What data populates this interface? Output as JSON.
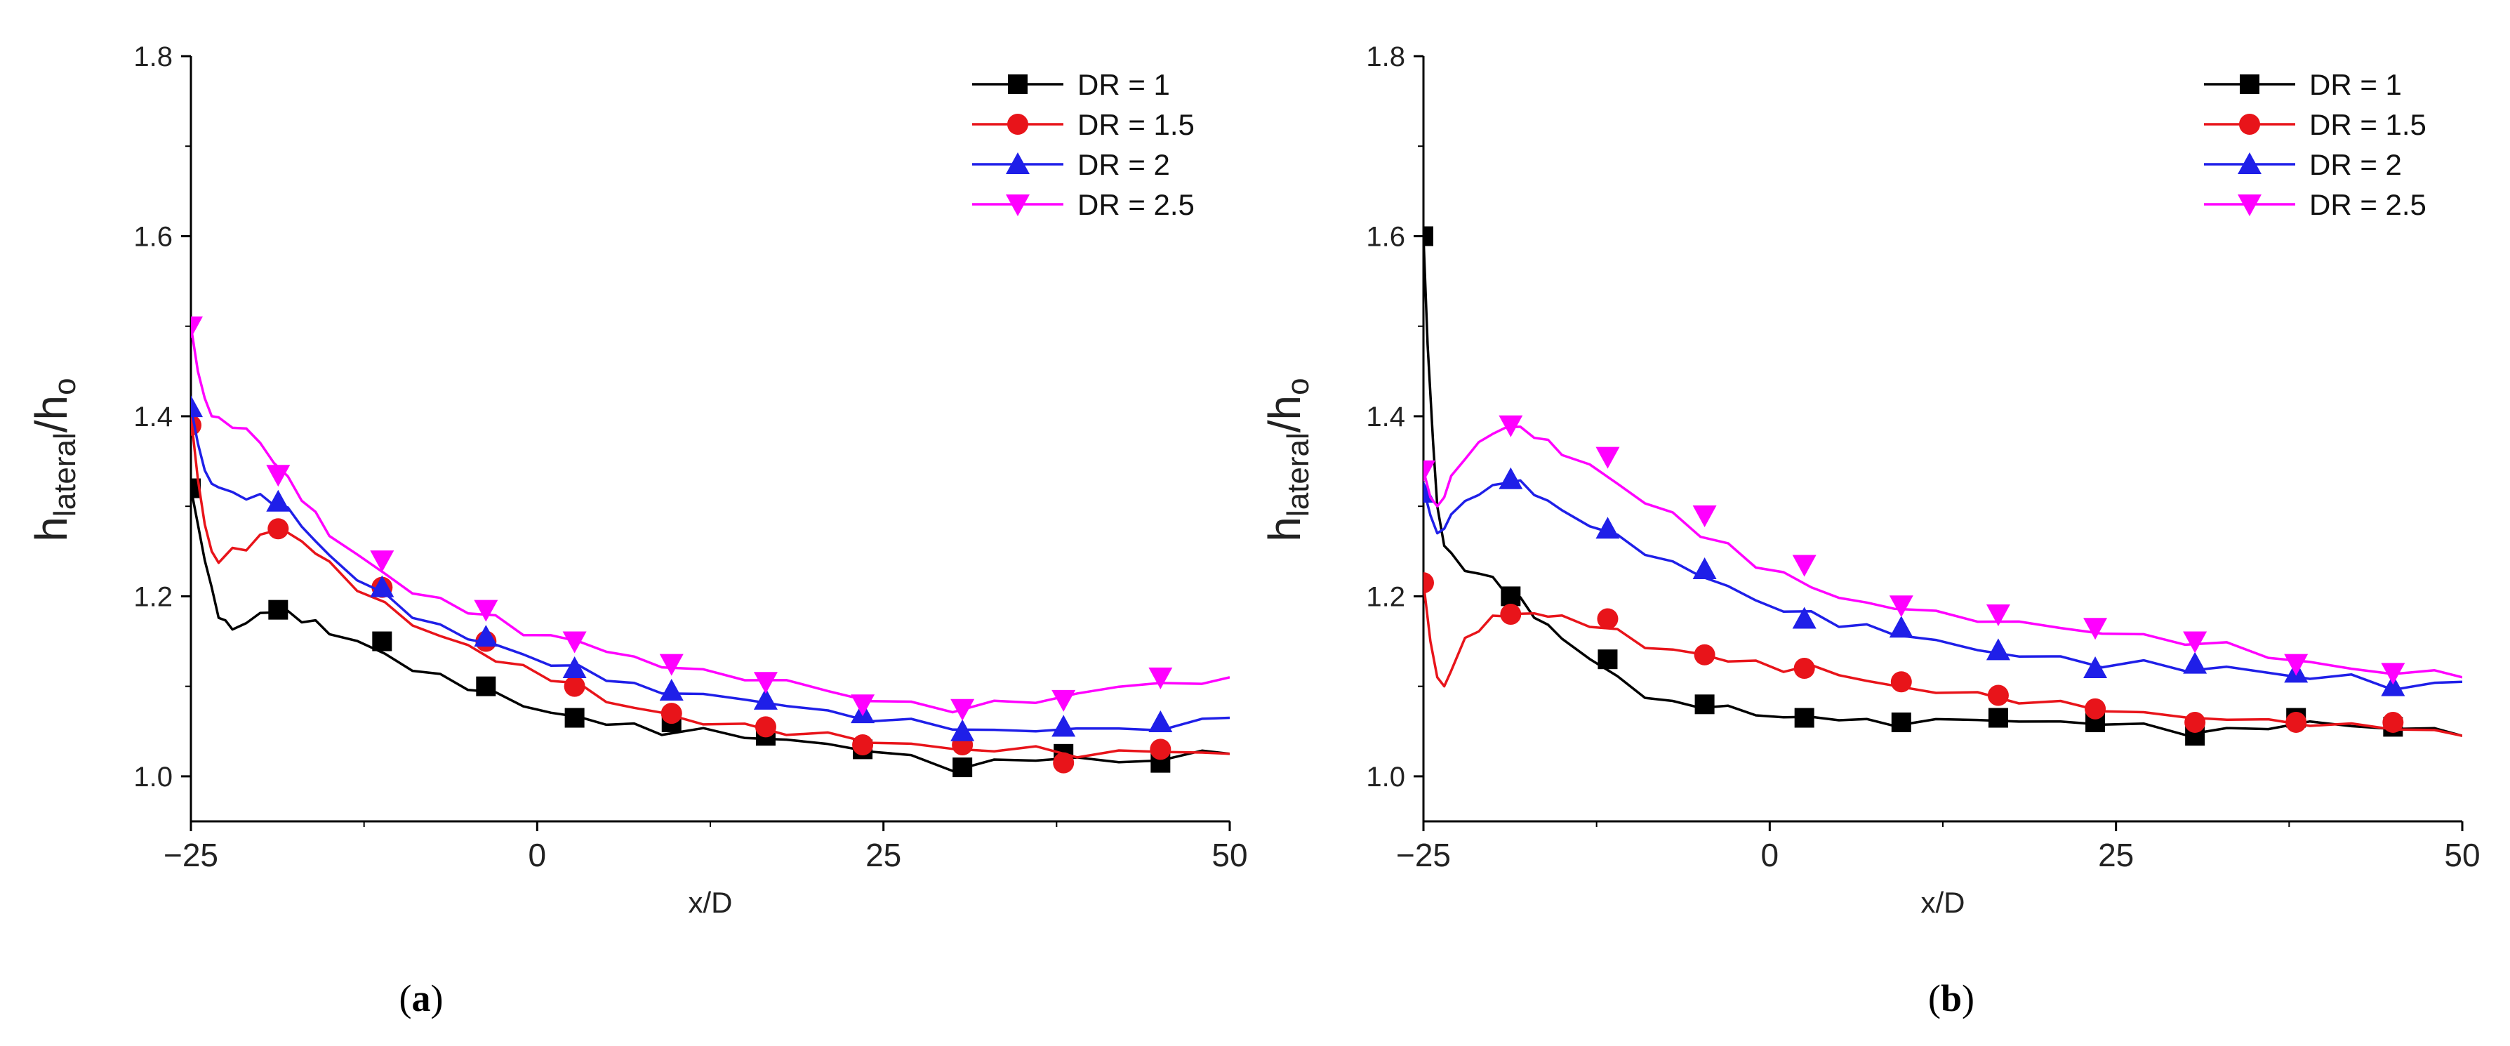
{
  "chart_data": [
    {
      "type": "line",
      "panel_label": "(a)",
      "panel_letter": "a",
      "xlabel": "x/D",
      "ylabel": {
        "base": "h",
        "sub": "lateral",
        "slash": "/h",
        "sub2": "o"
      },
      "xlim": [
        -25,
        50
      ],
      "ylim": [
        0.95,
        1.8
      ],
      "xticks": [
        -25,
        0,
        25,
        50
      ],
      "xtick_labels": [
        "−25",
        "0",
        "25",
        "50"
      ],
      "yticks": [
        1.0,
        1.2,
        1.4,
        1.6,
        1.8
      ],
      "ytick_labels": [
        "1.0",
        "1.2",
        "1.4",
        "1.6",
        "1.8"
      ],
      "legend_position": "top-right",
      "series": [
        {
          "name": "DR = 1",
          "color": "#000000",
          "marker": "square",
          "x": [
            -25,
            -24.5,
            -24,
            -23.5,
            -23,
            -22.5,
            -22,
            -21,
            -20,
            -19,
            -18,
            -17,
            -16,
            -15,
            -13,
            -11,
            -9,
            -7,
            -5,
            -3,
            -1,
            1,
            3,
            5,
            7,
            9,
            12,
            15,
            18,
            21,
            24,
            27,
            30,
            33,
            36,
            39,
            42,
            45,
            48,
            50
          ],
          "y": [
            1.32,
            1.28,
            1.24,
            1.21,
            1.18,
            1.17,
            1.165,
            1.17,
            1.18,
            1.185,
            1.18,
            1.175,
            1.17,
            1.16,
            1.15,
            1.135,
            1.12,
            1.11,
            1.1,
            1.09,
            1.08,
            1.07,
            1.065,
            1.06,
            1.055,
            1.05,
            1.05,
            1.045,
            1.04,
            1.035,
            1.03,
            1.02,
            1.01,
            1.015,
            1.02,
            1.02,
            1.015,
            1.02,
            1.025,
            1.025
          ],
          "mx": [
            -25,
            -18.7,
            -11.2,
            -3.7,
            2.7,
            9.7,
            16.5,
            23.5,
            30.7,
            38,
            45
          ],
          "my": [
            1.32,
            1.185,
            1.15,
            1.1,
            1.065,
            1.06,
            1.045,
            1.03,
            1.01,
            1.025,
            1.015
          ]
        },
        {
          "name": "DR = 1.5",
          "color": "#e8141a",
          "marker": "circle",
          "x": [
            -25,
            -24.5,
            -24,
            -23.5,
            -23,
            -22,
            -21,
            -20,
            -19,
            -18,
            -17,
            -16,
            -15,
            -13,
            -11,
            -9,
            -7,
            -5,
            -3,
            -1,
            1,
            3,
            5,
            7,
            9,
            12,
            15,
            18,
            21,
            24,
            27,
            30,
            33,
            36,
            39,
            42,
            45,
            48,
            50
          ],
          "y": [
            1.4,
            1.33,
            1.28,
            1.25,
            1.24,
            1.25,
            1.255,
            1.265,
            1.275,
            1.27,
            1.26,
            1.25,
            1.235,
            1.21,
            1.19,
            1.17,
            1.155,
            1.145,
            1.13,
            1.12,
            1.11,
            1.1,
            1.085,
            1.075,
            1.07,
            1.06,
            1.055,
            1.05,
            1.045,
            1.04,
            1.035,
            1.03,
            1.03,
            1.03,
            1.025,
            1.025,
            1.03,
            1.025,
            1.025
          ],
          "mx": [
            -25,
            -18.7,
            -11.2,
            -3.7,
            2.7,
            9.7,
            16.5,
            23.5,
            30.7,
            38,
            45
          ],
          "my": [
            1.39,
            1.275,
            1.21,
            1.15,
            1.1,
            1.07,
            1.055,
            1.035,
            1.035,
            1.015,
            1.03
          ]
        },
        {
          "name": "DR = 2",
          "color": "#1f1fe8",
          "marker": "triangle-up",
          "x": [
            -25,
            -24.5,
            -24,
            -23.5,
            -23,
            -22,
            -21,
            -20,
            -19,
            -18,
            -17,
            -16,
            -15,
            -13,
            -11,
            -9,
            -7,
            -5,
            -3,
            -1,
            1,
            3,
            5,
            7,
            9,
            12,
            15,
            18,
            21,
            24,
            27,
            30,
            33,
            36,
            39,
            42,
            45,
            48,
            50
          ],
          "y": [
            1.41,
            1.37,
            1.34,
            1.325,
            1.32,
            1.315,
            1.31,
            1.31,
            1.305,
            1.295,
            1.28,
            1.26,
            1.245,
            1.22,
            1.2,
            1.18,
            1.165,
            1.155,
            1.145,
            1.135,
            1.125,
            1.12,
            1.11,
            1.1,
            1.095,
            1.09,
            1.085,
            1.08,
            1.07,
            1.065,
            1.06,
            1.055,
            1.05,
            1.05,
            1.055,
            1.05,
            1.055,
            1.06,
            1.065
          ],
          "mx": [
            -25,
            -18.7,
            -11.2,
            -3.7,
            2.7,
            9.7,
            16.5,
            23.5,
            30.7,
            38,
            45
          ],
          "my": [
            1.41,
            1.305,
            1.21,
            1.155,
            1.12,
            1.095,
            1.085,
            1.07,
            1.05,
            1.055,
            1.06
          ]
        },
        {
          "name": "DR = 2.5",
          "color": "#ff00ff",
          "marker": "triangle-down",
          "x": [
            -25,
            -24.5,
            -24,
            -23.5,
            -23,
            -22,
            -21,
            -20,
            -19,
            -18,
            -17,
            -16,
            -15,
            -13,
            -11,
            -9,
            -7,
            -5,
            -3,
            -1,
            1,
            3,
            5,
            7,
            9,
            12,
            15,
            18,
            21,
            24,
            27,
            30,
            33,
            36,
            39,
            42,
            45,
            48,
            50
          ],
          "y": [
            1.5,
            1.45,
            1.42,
            1.4,
            1.395,
            1.39,
            1.385,
            1.37,
            1.35,
            1.33,
            1.31,
            1.29,
            1.27,
            1.245,
            1.225,
            1.205,
            1.195,
            1.185,
            1.175,
            1.16,
            1.155,
            1.15,
            1.14,
            1.13,
            1.125,
            1.115,
            1.11,
            1.105,
            1.095,
            1.085,
            1.08,
            1.075,
            1.08,
            1.085,
            1.09,
            1.1,
            1.105,
            1.1,
            1.11
          ],
          "mx": [
            -25,
            -18.7,
            -11.2,
            -3.7,
            2.7,
            9.7,
            16.5,
            23.5,
            30.7,
            38,
            45
          ],
          "my": [
            1.5,
            1.335,
            1.24,
            1.185,
            1.15,
            1.125,
            1.105,
            1.08,
            1.075,
            1.085,
            1.11
          ]
        }
      ]
    },
    {
      "type": "line",
      "panel_label": "(b)",
      "panel_letter": "b",
      "xlabel": "x/D",
      "ylabel": {
        "base": "h",
        "sub": "lateral",
        "slash": "/h",
        "sub2": "o"
      },
      "xlim": [
        -25,
        50
      ],
      "ylim": [
        0.95,
        1.8
      ],
      "xticks": [
        -25,
        0,
        25,
        50
      ],
      "xtick_labels": [
        "−25",
        "0",
        "25",
        "50"
      ],
      "yticks": [
        1.0,
        1.2,
        1.4,
        1.6,
        1.8
      ],
      "ytick_labels": [
        "1.0",
        "1.2",
        "1.4",
        "1.6",
        "1.8"
      ],
      "legend_position": "top-right",
      "series": [
        {
          "name": "DR = 1",
          "color": "#000000",
          "marker": "square",
          "x": [
            -25,
            -24.7,
            -24.3,
            -24,
            -23.5,
            -23,
            -22,
            -21,
            -20,
            -19,
            -18,
            -17,
            -16,
            -15,
            -13,
            -11,
            -9,
            -7,
            -5,
            -3,
            -1,
            1,
            3,
            5,
            7,
            9,
            12,
            15,
            18,
            21,
            24,
            27,
            30,
            33,
            36,
            39,
            42,
            45,
            48,
            50
          ],
          "y": [
            1.6,
            1.48,
            1.37,
            1.3,
            1.26,
            1.245,
            1.23,
            1.225,
            1.22,
            1.205,
            1.195,
            1.18,
            1.165,
            1.155,
            1.13,
            1.11,
            1.09,
            1.08,
            1.08,
            1.075,
            1.07,
            1.065,
            1.065,
            1.065,
            1.06,
            1.06,
            1.06,
            1.065,
            1.06,
            1.06,
            1.06,
            1.055,
            1.05,
            1.05,
            1.055,
            1.06,
            1.055,
            1.055,
            1.05,
            1.045
          ],
          "mx": [
            -25,
            -18.7,
            -11.7,
            -4.7,
            2.5,
            9.5,
            16.5,
            23.5,
            30.7,
            38,
            45
          ],
          "my": [
            1.6,
            1.2,
            1.13,
            1.08,
            1.065,
            1.06,
            1.065,
            1.06,
            1.045,
            1.065,
            1.055
          ]
        },
        {
          "name": "DR = 1.5",
          "color": "#e8141a",
          "marker": "circle",
          "x": [
            -25,
            -24.5,
            -24,
            -23.5,
            -23,
            -22,
            -21,
            -20,
            -19,
            -18,
            -17,
            -16,
            -15,
            -13,
            -11,
            -9,
            -7,
            -5,
            -3,
            -1,
            1,
            3,
            5,
            7,
            9,
            12,
            15,
            18,
            21,
            24,
            27,
            30,
            33,
            36,
            39,
            42,
            45,
            48,
            50
          ],
          "y": [
            1.215,
            1.15,
            1.11,
            1.1,
            1.12,
            1.15,
            1.165,
            1.175,
            1.18,
            1.18,
            1.18,
            1.18,
            1.175,
            1.17,
            1.16,
            1.145,
            1.14,
            1.135,
            1.13,
            1.125,
            1.12,
            1.12,
            1.115,
            1.105,
            1.1,
            1.095,
            1.09,
            1.085,
            1.08,
            1.075,
            1.07,
            1.065,
            1.065,
            1.06,
            1.06,
            1.055,
            1.055,
            1.05,
            1.045
          ],
          "mx": [
            -25,
            -18.7,
            -11.7,
            -4.7,
            2.5,
            9.5,
            16.5,
            23.5,
            30.7,
            38,
            45
          ],
          "my": [
            1.215,
            1.18,
            1.175,
            1.135,
            1.12,
            1.105,
            1.09,
            1.075,
            1.06,
            1.06,
            1.06
          ]
        },
        {
          "name": "DR = 2",
          "color": "#1f1fe8",
          "marker": "triangle-up",
          "x": [
            -25,
            -24.5,
            -24,
            -23.5,
            -23,
            -22,
            -21,
            -20,
            -19,
            -18,
            -17,
            -16,
            -15,
            -13,
            -11,
            -9,
            -7,
            -5,
            -3,
            -1,
            1,
            3,
            5,
            7,
            9,
            12,
            15,
            18,
            21,
            24,
            27,
            30,
            33,
            36,
            39,
            42,
            45,
            48,
            50
          ],
          "y": [
            1.32,
            1.29,
            1.27,
            1.275,
            1.29,
            1.305,
            1.315,
            1.32,
            1.33,
            1.325,
            1.315,
            1.305,
            1.295,
            1.28,
            1.265,
            1.25,
            1.235,
            1.225,
            1.21,
            1.195,
            1.185,
            1.18,
            1.17,
            1.165,
            1.16,
            1.15,
            1.14,
            1.135,
            1.13,
            1.125,
            1.125,
            1.12,
            1.12,
            1.115,
            1.11,
            1.11,
            1.1,
            1.1,
            1.105
          ],
          "mx": [
            -25,
            -18.7,
            -11.7,
            -4.7,
            2.5,
            9.5,
            16.5,
            23.5,
            30.7,
            38,
            45
          ],
          "my": [
            1.315,
            1.33,
            1.275,
            1.23,
            1.175,
            1.165,
            1.14,
            1.12,
            1.125,
            1.115,
            1.1
          ]
        },
        {
          "name": "DR = 2.5",
          "color": "#ff00ff",
          "marker": "triangle-down",
          "x": [
            -25,
            -24.5,
            -24,
            -23.5,
            -23,
            -22,
            -21,
            -20,
            -19,
            -18,
            -17,
            -16,
            -15,
            -13,
            -11,
            -9,
            -7,
            -5,
            -3,
            -1,
            1,
            3,
            5,
            7,
            9,
            12,
            15,
            18,
            21,
            24,
            27,
            30,
            33,
            36,
            39,
            42,
            45,
            48,
            50
          ],
          "y": [
            1.34,
            1.31,
            1.3,
            1.31,
            1.33,
            1.355,
            1.37,
            1.38,
            1.39,
            1.385,
            1.38,
            1.37,
            1.36,
            1.345,
            1.325,
            1.305,
            1.29,
            1.27,
            1.255,
            1.235,
            1.225,
            1.21,
            1.2,
            1.19,
            1.19,
            1.18,
            1.175,
            1.17,
            1.165,
            1.16,
            1.155,
            1.15,
            1.145,
            1.135,
            1.125,
            1.12,
            1.115,
            1.115,
            1.11
          ],
          "mx": [
            -25,
            -18.7,
            -11.7,
            -4.7,
            2.5,
            9.5,
            16.5,
            23.5,
            30.7,
            38,
            45
          ],
          "my": [
            1.34,
            1.39,
            1.355,
            1.29,
            1.235,
            1.19,
            1.18,
            1.165,
            1.15,
            1.125,
            1.115
          ]
        }
      ]
    }
  ]
}
